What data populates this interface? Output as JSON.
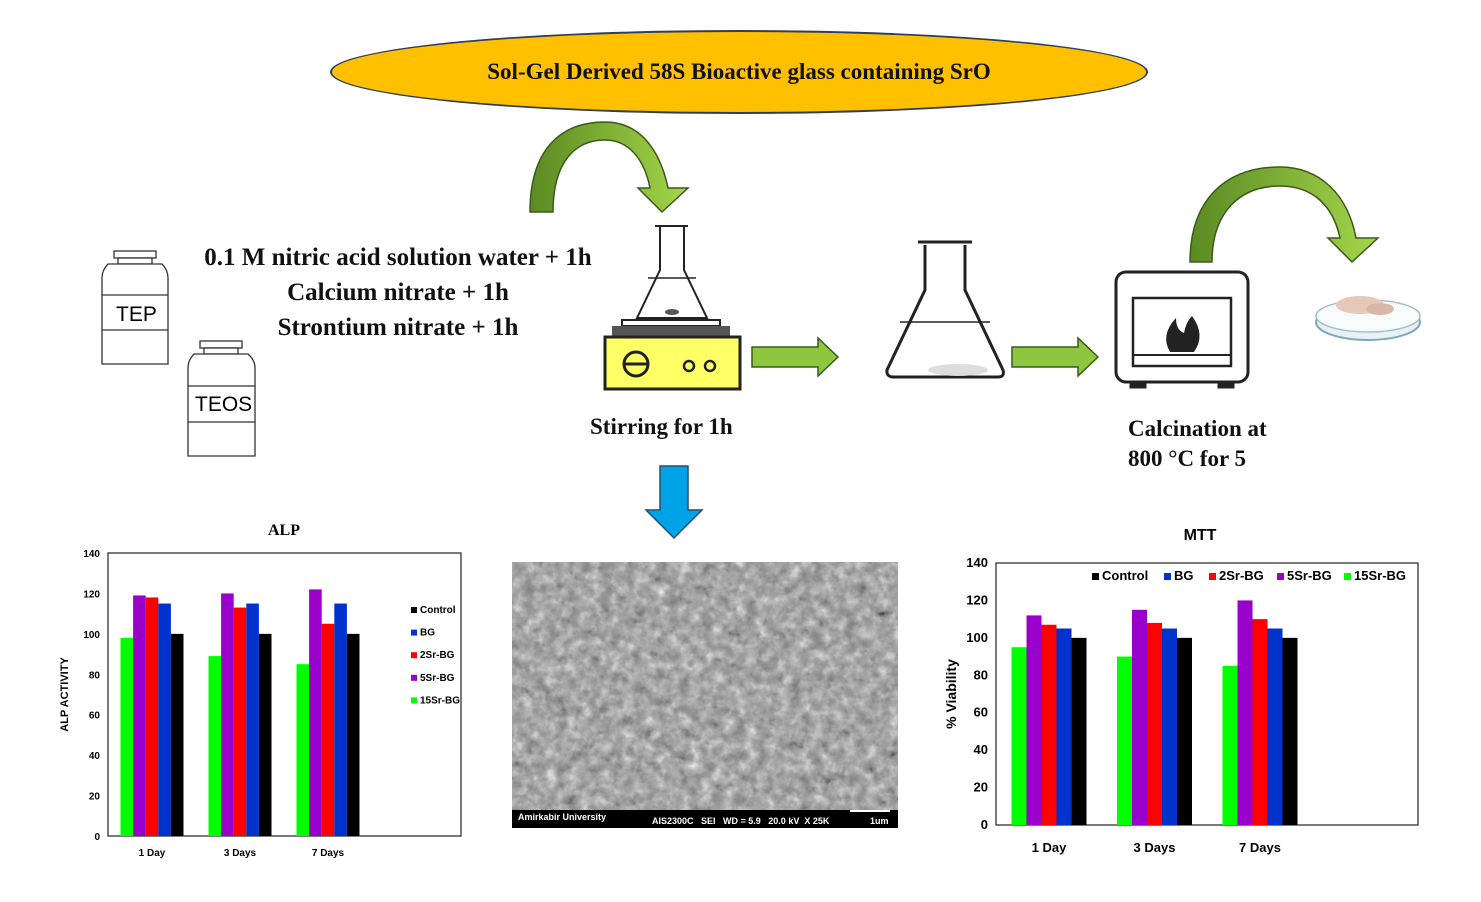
{
  "header": {
    "title": "Sol-Gel Derived 58S Bioactive glass containing SrO"
  },
  "reagents": {
    "lines": [
      "0.1 M nitric acid solution water + 1h",
      "Calcium nitrate + 1h",
      "Strontium nitrate + 1h"
    ],
    "bottle1": "TEP",
    "bottle2": "TEOS"
  },
  "steps": {
    "stirring": "Stirring for 1h",
    "calcination_line1": "Calcination at",
    "calcination_line2": "800 °C for 5"
  },
  "sem": {
    "institution": "Amirkabir University",
    "info": "AIS2300C   SEI   WD = 5.9   20.0 kV  X 25K",
    "scale": "1um"
  },
  "colors": {
    "ellipse": "#ffc000",
    "green_arrow": "#8dc63f",
    "blue_arrow": "#00a2e8",
    "Control": "#000000",
    "BG": "#0033cc",
    "2Sr-BG": "#ff0000",
    "5Sr-BG": "#9900cc",
    "15Sr-BG": "#00ff00"
  },
  "chart_data": [
    {
      "type": "bar",
      "title": "ALP",
      "ylabel": "ALP ACTIVITY",
      "xlabel": "",
      "ylim": [
        0,
        140
      ],
      "yticks": [
        0,
        20,
        40,
        60,
        80,
        100,
        120,
        140
      ],
      "categories": [
        "1 Day",
        "3 Days",
        "7 Days"
      ],
      "legend": "right",
      "legend_order": [
        "Control",
        "BG",
        "2Sr-BG",
        "5Sr-BG",
        "15Sr-BG"
      ],
      "series": [
        {
          "name": "15Sr-BG",
          "values": [
            98,
            89,
            85
          ]
        },
        {
          "name": "5Sr-BG",
          "values": [
            119,
            120,
            122
          ]
        },
        {
          "name": "2Sr-BG",
          "values": [
            118,
            113,
            105
          ]
        },
        {
          "name": "BG",
          "values": [
            115,
            115,
            115
          ]
        },
        {
          "name": "Control",
          "values": [
            100,
            100,
            100
          ]
        }
      ]
    },
    {
      "type": "bar",
      "title": "MTT",
      "ylabel": "% Viability",
      "xlabel": "",
      "ylim": [
        0,
        140
      ],
      "yticks": [
        0,
        20,
        40,
        60,
        80,
        100,
        120,
        140
      ],
      "categories": [
        "1 Day",
        "3 Days",
        "7 Days"
      ],
      "legend": "top",
      "legend_order": [
        "Control",
        "BG",
        "2Sr-BG",
        "5Sr-BG",
        "15Sr-BG"
      ],
      "series": [
        {
          "name": "15Sr-BG",
          "values": [
            95,
            90,
            85
          ]
        },
        {
          "name": "5Sr-BG",
          "values": [
            112,
            115,
            120
          ]
        },
        {
          "name": "2Sr-BG",
          "values": [
            107,
            108,
            110
          ]
        },
        {
          "name": "BG",
          "values": [
            105,
            105,
            105
          ]
        },
        {
          "name": "Control",
          "values": [
            100,
            100,
            100
          ]
        }
      ]
    }
  ]
}
